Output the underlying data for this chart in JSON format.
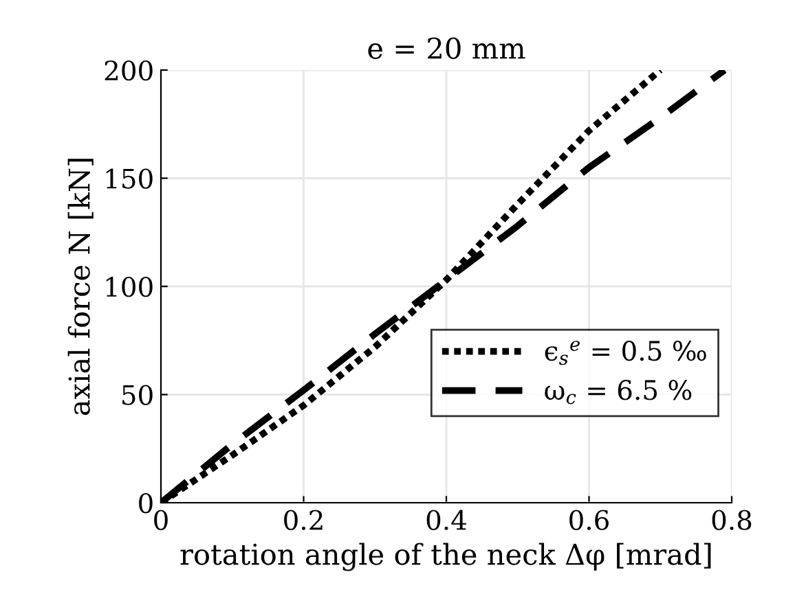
{
  "chart_data": {
    "type": "line",
    "title": "e = 20 mm",
    "xlabel": "rotation angle of the neck Δφ [mrad]",
    "ylabel": "axial force N [kN]",
    "xlim": [
      0,
      0.8
    ],
    "xticks": [
      0,
      0.2,
      0.4,
      0.6,
      0.8
    ],
    "ylim": [
      0,
      200
    ],
    "yticks": [
      0,
      50,
      100,
      150,
      200
    ],
    "grid": true,
    "legend": "right",
    "series": [
      {
        "name": "ϵ$_{s}$$^{e}$ = 0.5 ‰",
        "color": "#000000",
        "line_style": "dotted",
        "x": [
          0,
          0.1,
          0.2,
          0.3,
          0.4,
          0.5,
          0.6,
          0.7
        ],
        "values": [
          0,
          22,
          45,
          72,
          103,
          138,
          172,
          200
        ]
      },
      {
        "name": "ω$_{c}$ = 6.5 %",
        "color": "#000000",
        "line_style": "dashed",
        "x": [
          0,
          0.1,
          0.2,
          0.3,
          0.4,
          0.5,
          0.6,
          0.7,
          0.79
        ],
        "values": [
          0,
          27,
          52,
          78,
          103,
          128,
          155,
          178,
          200
        ]
      }
    ]
  }
}
